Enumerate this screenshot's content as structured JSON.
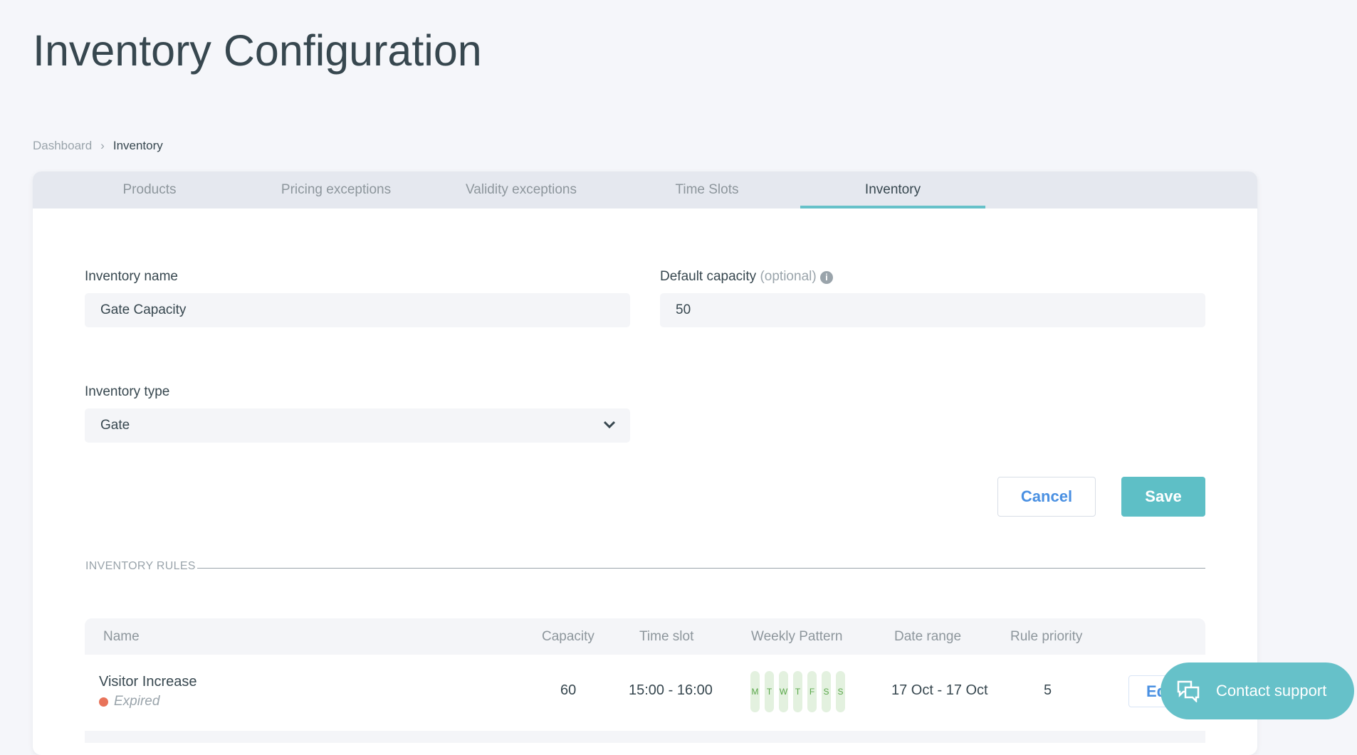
{
  "page_title": "Inventory Configuration",
  "breadcrumb": [
    "Dashboard",
    "Inventory"
  ],
  "tabs": [
    "Products",
    "Pricing exceptions",
    "Validity exceptions",
    "Time Slots",
    "Inventory"
  ],
  "active_tab": "Inventory",
  "form": {
    "name_label": "Inventory name",
    "name_value": "Gate Capacity",
    "capacity_label": "Default capacity",
    "capacity_optional": "(optional)",
    "capacity_value": "50",
    "type_label": "Inventory type",
    "type_value": "Gate",
    "cancel": "Cancel",
    "save": "Save"
  },
  "rules": {
    "section_title": "INVENTORY RULES",
    "columns": [
      "Name",
      "Capacity",
      "Time slot",
      "Weekly Pattern",
      "Date range",
      "Rule priority"
    ],
    "rows": [
      {
        "name": "Visitor Increase",
        "status": "Expired",
        "capacity": "60",
        "time_slot": "15:00 - 16:00",
        "days": [
          "M",
          "T",
          "W",
          "T",
          "F",
          "S",
          "S"
        ],
        "date_range": "17 Oct - 17 Oct",
        "priority": "5",
        "action": "Ed"
      }
    ]
  },
  "support": {
    "label": "Contact support"
  },
  "colors": {
    "accent": "#66c1c9",
    "link": "#4a90e2",
    "expired": "#e8735a"
  }
}
